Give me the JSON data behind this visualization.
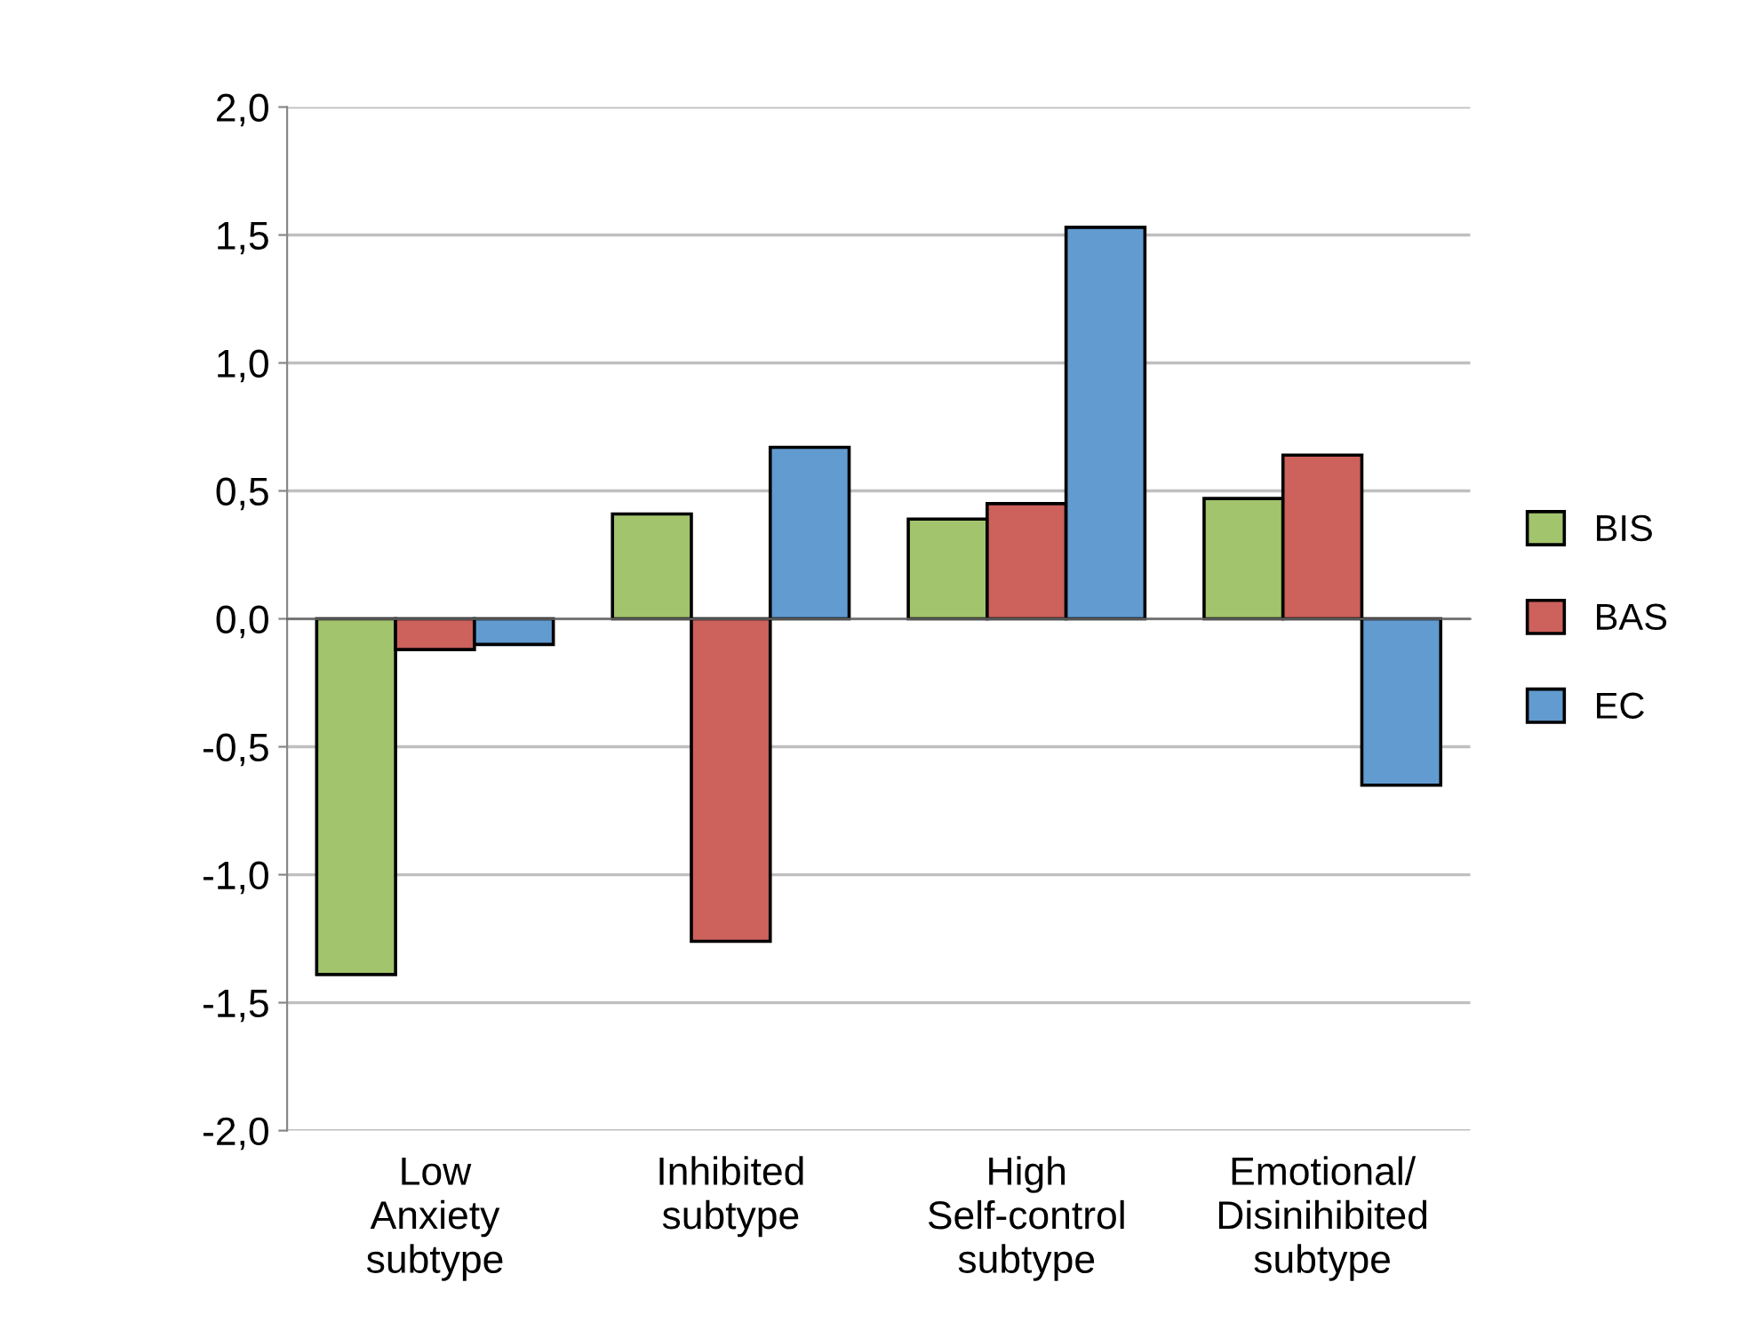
{
  "chart_data": {
    "type": "bar",
    "categories": [
      "Low\nAnxiety\nsubtype",
      "Inhibited\nsubtype",
      "High\nSelf-control\nsubtype",
      "Emotional/\nDisinihibited\nsubtype"
    ],
    "series": [
      {
        "name": "BIS",
        "color": "#a2c46c",
        "values": [
          -1.39,
          0.41,
          0.39,
          0.47
        ]
      },
      {
        "name": "BAS",
        "color": "#cd615c",
        "values": [
          -0.12,
          -1.26,
          0.45,
          0.64
        ]
      },
      {
        "name": "EC",
        "color": "#619bd0",
        "values": [
          -0.1,
          0.67,
          1.53,
          -0.65
        ]
      }
    ],
    "ylim": [
      -2,
      2
    ],
    "yticks": [
      {
        "value": -2,
        "label": "-2,0"
      },
      {
        "value": -1.5,
        "label": "-1,5"
      },
      {
        "value": -1,
        "label": "-1,0"
      },
      {
        "value": -0.5,
        "label": "-0,5"
      },
      {
        "value": 0,
        "label": "0,0"
      },
      {
        "value": 0.5,
        "label": "0,5"
      },
      {
        "value": 1,
        "label": "1,0"
      },
      {
        "value": 1.5,
        "label": "1,5"
      },
      {
        "value": 2,
        "label": "2,0"
      }
    ],
    "grid": "y",
    "legend": "right"
  }
}
